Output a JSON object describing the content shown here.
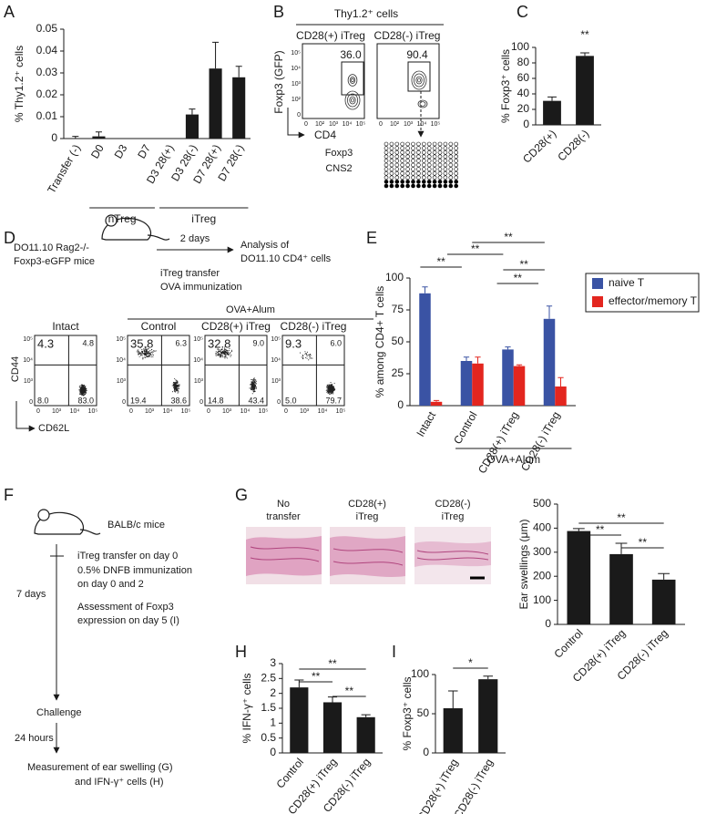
{
  "panel_letters": [
    "A",
    "B",
    "C",
    "D",
    "E",
    "F",
    "G",
    "H",
    "I"
  ],
  "chart_data": [
    {
      "type": "bar",
      "ylabel": "% Thy1.2⁺ cells",
      "categories": [
        "Transfer (-)",
        "D0",
        "D3",
        "D7",
        "D3 28(+)",
        "D3 28(-)",
        "D7 28(+)",
        "D7 28(-)"
      ],
      "values": [
        0,
        0.001,
        0,
        0,
        0,
        0.011,
        0.032,
        0.028
      ],
      "errors": [
        0.001,
        0.002,
        0,
        0,
        0,
        0.0025,
        0.012,
        0.005
      ],
      "color": "#1a1a1a",
      "ylim": [
        0,
        0.05
      ],
      "yticks": [
        0,
        0.01,
        0.02,
        0.03,
        0.04,
        0.05
      ],
      "groups": [
        "nTreg",
        "iTreg"
      ]
    },
    {
      "type": "bar",
      "ylabel": "% Foxp3⁺ cells",
      "categories": [
        "CD28(+)",
        "CD28(-)"
      ],
      "values": [
        31,
        89
      ],
      "errors": [
        5,
        4
      ],
      "color": "#1a1a1a",
      "ylim": [
        0,
        100
      ],
      "yticks": [
        0,
        20,
        40,
        60,
        80,
        100
      ],
      "significance": [
        "**"
      ]
    },
    {
      "type": "bar",
      "ylabel": "% among CD4+ T cells",
      "categories": [
        "Intact",
        "Control",
        "CD28(+) iTreg",
        "CD28(-) iTreg"
      ],
      "series": [
        {
          "name": "naive T",
          "color": "#3a53a4",
          "values": [
            88,
            35,
            44,
            68
          ],
          "errors": [
            5,
            3,
            2,
            10
          ]
        },
        {
          "name": "effector/memory T",
          "color": "#e3261f",
          "values": [
            3,
            33,
            31,
            15
          ],
          "errors": [
            1,
            5,
            1,
            7
          ]
        }
      ],
      "ylim": [
        0,
        100
      ],
      "yticks": [
        0,
        25,
        50,
        75,
        100
      ],
      "groups": [
        "OVA+Alum"
      ],
      "significance": [
        "**",
        "**",
        "**",
        "**",
        "**"
      ],
      "legend": "right"
    },
    {
      "type": "bar",
      "ylabel": "Ear swellings (μm)",
      "categories": [
        "Control",
        "CD28(+) iTreg",
        "CD28(-) iTreg"
      ],
      "values": [
        388,
        292,
        186
      ],
      "errors": [
        10,
        45,
        25
      ],
      "color": "#1a1a1a",
      "ylim": [
        0,
        500
      ],
      "yticks": [
        0,
        100,
        200,
        300,
        400,
        500
      ],
      "significance": [
        "**",
        "**",
        "**"
      ]
    },
    {
      "type": "bar",
      "ylabel": "% IFN-γ⁺ cells",
      "categories": [
        "Control",
        "CD28(+) iTreg",
        "CD28(-) iTreg"
      ],
      "values": [
        2.2,
        1.7,
        1.2
      ],
      "errors": [
        0.25,
        0.18,
        0.08
      ],
      "color": "#1a1a1a",
      "ylim": [
        0,
        3
      ],
      "yticks": [
        0,
        0.5,
        1,
        1.5,
        2,
        2.5,
        3
      ],
      "significance": [
        "**",
        "**",
        "**"
      ]
    },
    {
      "type": "bar",
      "ylabel": "% Foxp3⁺ cells",
      "categories": [
        "CD28(+) iTreg",
        "CD28(-) iTreg"
      ],
      "values": [
        57,
        94
      ],
      "errors": [
        22,
        4
      ],
      "color": "#1a1a1a",
      "ylim": [
        0,
        100
      ],
      "yticks": [
        0,
        50,
        100
      ],
      "significance": [
        "*"
      ]
    }
  ],
  "panel_b": {
    "header": "Thy1.2⁺ cells",
    "plots": [
      {
        "title": "CD28(+) iTreg",
        "gate": "36.0"
      },
      {
        "title": "CD28(-) iTreg",
        "gate": "90.4"
      }
    ],
    "y_axis": "Foxp3 (GFP)",
    "x_axis": "CD4",
    "axis_ticks": [
      "0",
      "10²",
      "10³",
      "10⁴",
      "10⁵"
    ],
    "region": [
      "Foxp3",
      "CNS2"
    ]
  },
  "panel_d": {
    "mouse": [
      "DO11.10 Rag2-/-",
      "Foxp3-eGFP mice"
    ],
    "interval": "2 days",
    "treatment": [
      "iTreg transfer",
      "OVA immunization"
    ],
    "analysis": [
      "Analysis of",
      "DO11.10 CD4⁺ cells"
    ],
    "group": "OVA+Alum",
    "plots": [
      {
        "title": "Intact",
        "quadrants": [
          "4.3",
          "4.8",
          "8.0",
          "83.0"
        ]
      },
      {
        "title": "Control",
        "quadrants": [
          "35.8",
          "6.3",
          "19.4",
          "38.6"
        ]
      },
      {
        "title": "CD28(+) iTreg",
        "quadrants": [
          "32.8",
          "9.0",
          "14.8",
          "43.4"
        ]
      },
      {
        "title": "CD28(-) iTreg",
        "quadrants": [
          "9.3",
          "6.0",
          "5.0",
          "79.7"
        ]
      }
    ],
    "y_axis": "CD44",
    "x_axis": "CD62L",
    "axis_ticks": [
      "0",
      "10³",
      "10⁴",
      "10⁵"
    ]
  },
  "panel_f": {
    "mouse": "BALB/c mice",
    "steps": [
      "iTreg transfer on day 0",
      "0.5% DNFB immunization",
      "on day 0 and 2",
      "Assessment of Foxp3",
      "expression on day 5 (I)"
    ],
    "interval1": "7 days",
    "challenge": "Challenge",
    "interval2": "24 hours",
    "readout": [
      "Measurement of ear swelling (G)",
      "and IFN-γ⁺ cells (H)"
    ]
  },
  "panel_g": {
    "images": [
      [
        "No",
        "transfer"
      ],
      [
        "CD28(+)",
        "iTreg"
      ],
      [
        "CD28(-)",
        "iTreg"
      ]
    ]
  }
}
